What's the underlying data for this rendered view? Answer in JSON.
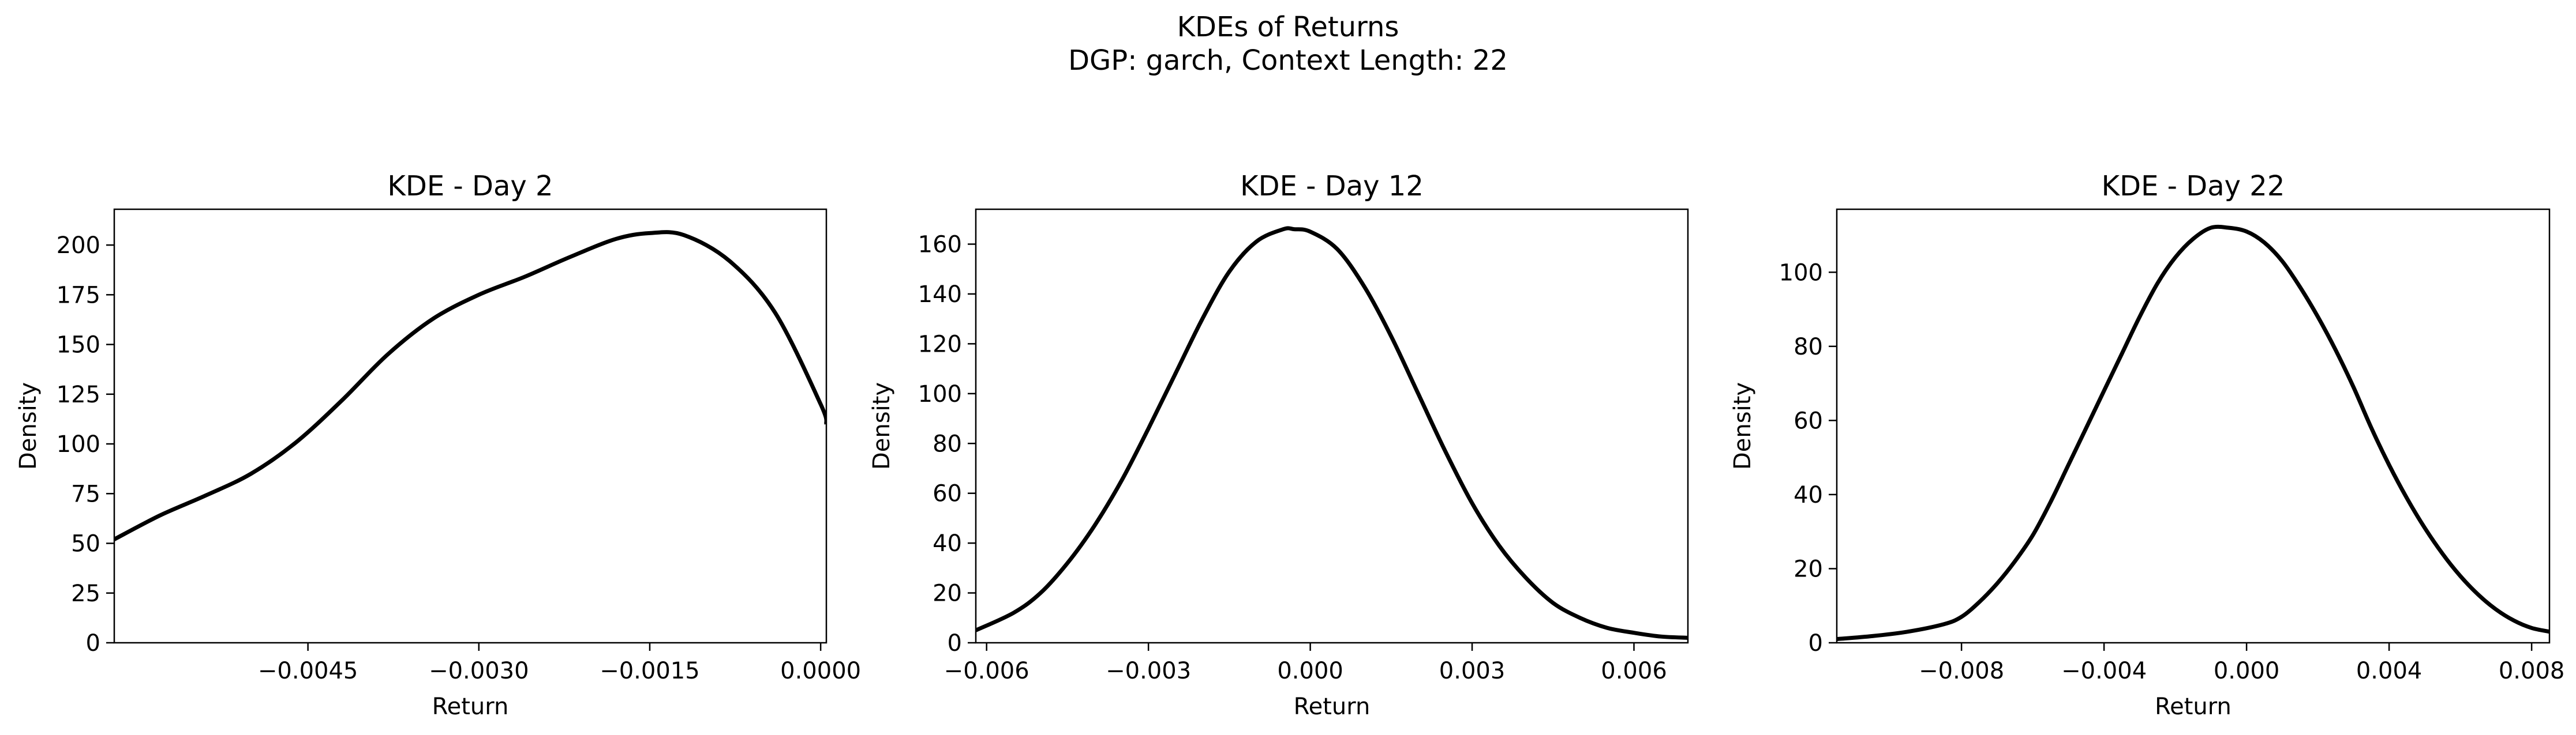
{
  "figure": {
    "title_line1": "KDEs of Returns",
    "title_line2": "DGP: garch, Context Length: 22"
  },
  "chart_data": [
    {
      "type": "line",
      "title": "KDE - Day 2",
      "xlabel": "Return",
      "ylabel": "Density",
      "xlim": [
        -0.0062,
        5e-05
      ],
      "ylim": [
        0,
        218
      ],
      "xticks": [
        -0.0045,
        -0.003,
        -0.0015,
        0.0
      ],
      "xtick_labels": [
        "−0.0045",
        "−0.0030",
        "−0.0015",
        "0.0000"
      ],
      "yticks": [
        0,
        25,
        50,
        75,
        100,
        125,
        150,
        175,
        200
      ],
      "ytick_labels": [
        "0",
        "25",
        "50",
        "75",
        "100",
        "125",
        "150",
        "175",
        "200"
      ],
      "grid": false,
      "line_color": "#000000",
      "series": [
        {
          "x": [
            -0.0062,
            -0.0058,
            -0.0054,
            -0.005,
            -0.0046,
            -0.0042,
            -0.0038,
            -0.0034,
            -0.003,
            -0.0026,
            -0.0022,
            -0.0018,
            -0.0015,
            -0.0012,
            -0.0008,
            -0.0004,
            0.0,
            5e-05
          ],
          "y": [
            52,
            64,
            74,
            85,
            101,
            122,
            145,
            163,
            175,
            184,
            194,
            203,
            206,
            205,
            192,
            166,
            120,
            110
          ]
        }
      ]
    },
    {
      "type": "line",
      "title": "KDE - Day 12",
      "xlabel": "Return",
      "ylabel": "Density",
      "xlim": [
        -0.0062,
        0.007
      ],
      "ylim": [
        0,
        174
      ],
      "xticks": [
        -0.006,
        -0.003,
        0.0,
        0.003,
        0.006
      ],
      "xtick_labels": [
        "−0.006",
        "−0.003",
        "0.000",
        "0.003",
        "0.006"
      ],
      "yticks": [
        0,
        20,
        40,
        60,
        80,
        100,
        120,
        140,
        160
      ],
      "ytick_labels": [
        "0",
        "20",
        "40",
        "60",
        "80",
        "100",
        "120",
        "140",
        "160"
      ],
      "grid": false,
      "line_color": "#000000",
      "series": [
        {
          "x": [
            -0.0062,
            -0.0055,
            -0.005,
            -0.0045,
            -0.004,
            -0.0035,
            -0.003,
            -0.0025,
            -0.002,
            -0.0015,
            -0.001,
            -0.0005,
            -0.0003,
            0.0,
            0.0005,
            0.001,
            0.0015,
            0.002,
            0.0025,
            0.003,
            0.0035,
            0.004,
            0.0045,
            0.005,
            0.0055,
            0.006,
            0.0065,
            0.007
          ],
          "y": [
            5,
            12,
            20,
            32,
            47,
            65,
            86,
            108,
            130,
            149,
            161,
            166,
            166,
            165,
            158,
            143,
            123,
            100,
            77,
            56,
            39,
            26,
            16,
            10,
            6,
            4,
            2.5,
            2
          ]
        }
      ]
    },
    {
      "type": "line",
      "title": "KDE - Day 22",
      "xlabel": "Return",
      "ylabel": "Density",
      "xlim": [
        -0.0115,
        0.0085
      ],
      "ylim": [
        0,
        117
      ],
      "xticks": [
        -0.008,
        -0.004,
        0.0,
        0.004,
        0.008
      ],
      "xtick_labels": [
        "−0.008",
        "−0.004",
        "0.000",
        "0.004",
        "0.008"
      ],
      "yticks": [
        0,
        20,
        40,
        60,
        80,
        100
      ],
      "ytick_labels": [
        "0",
        "20",
        "40",
        "60",
        "80",
        "100"
      ],
      "grid": false,
      "line_color": "#000000",
      "series": [
        {
          "x": [
            -0.0115,
            -0.0105,
            -0.0095,
            -0.0085,
            -0.008,
            -0.0075,
            -0.007,
            -0.0065,
            -0.006,
            -0.0055,
            -0.005,
            -0.0045,
            -0.004,
            -0.0035,
            -0.003,
            -0.0025,
            -0.002,
            -0.0015,
            -0.001,
            -0.0005,
            0.0,
            0.0005,
            0.001,
            0.0015,
            0.002,
            0.0025,
            0.003,
            0.0035,
            0.004,
            0.0045,
            0.005,
            0.0055,
            0.006,
            0.0065,
            0.007,
            0.0075,
            0.008,
            0.0085
          ],
          "y": [
            1,
            1.8,
            3,
            5,
            7,
            11,
            16,
            22,
            29,
            38,
            48,
            58,
            68,
            78,
            88,
            97,
            104,
            109,
            112,
            112,
            111,
            108,
            103,
            96,
            88,
            79,
            69,
            58,
            48,
            39,
            31,
            24,
            18,
            13,
            9,
            6,
            4,
            3
          ]
        }
      ]
    }
  ]
}
